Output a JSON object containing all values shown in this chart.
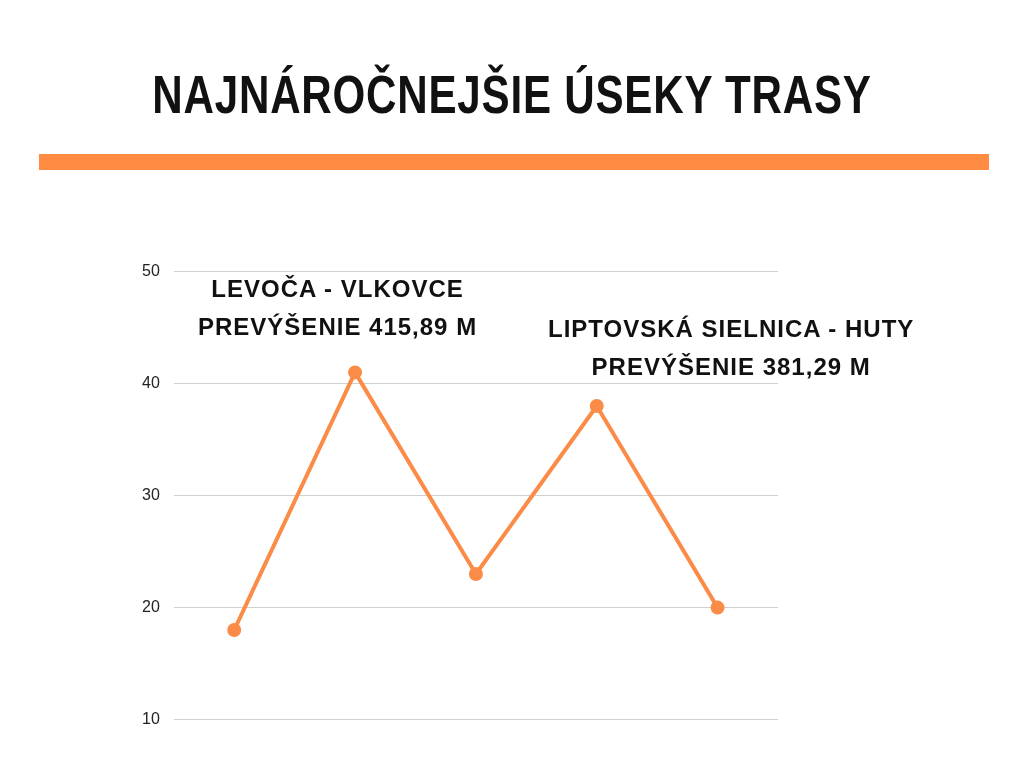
{
  "chart_data": {
    "type": "line",
    "title": "NAJNÁROČNEJŠIE ÚSEKY TRASY",
    "categories": [
      null,
      null,
      null,
      null,
      null
    ],
    "values": [
      18,
      41,
      23,
      38,
      20
    ],
    "color": "#fa8c47",
    "ylim": [
      10,
      50
    ],
    "yticks": [
      10,
      20,
      30,
      40,
      50
    ],
    "grid": "y",
    "marker": "circle",
    "line_style": "solid",
    "legend": false,
    "annotations": [
      "LEVOČA - VLKOVCE\nPREVÝŠENIE 415,89 M",
      "LIPTOVSKÁ SIELNICA - HUTY\nPREVÝŠENIE 381,29 M"
    ]
  }
}
